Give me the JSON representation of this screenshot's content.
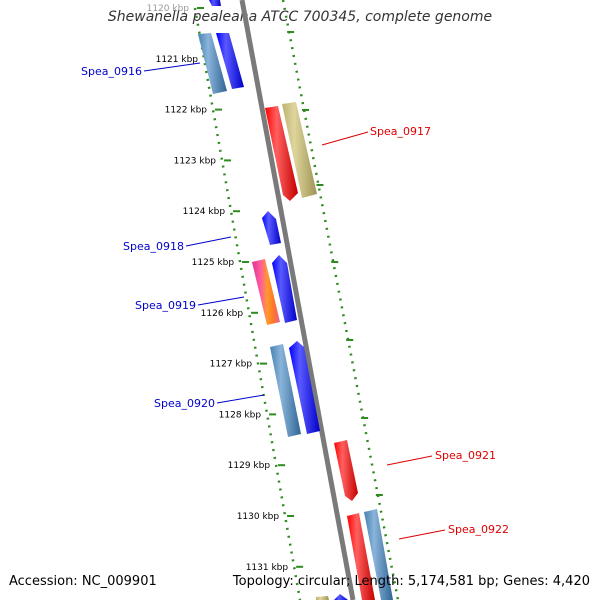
{
  "title": "Shewanella pealeana ATCC 700345, complete genome",
  "footer": {
    "accession": "Accession: NC_009901",
    "stats": "Topology: circular; Length: 5,174,581 bp; Genes: 4,420"
  },
  "ticks": [
    "1120 kbp",
    "1121 kbp",
    "1122 kbp",
    "1123 kbp",
    "1124 kbp",
    "1125 kbp",
    "1126 kbp",
    "1127 kbp",
    "1128 kbp",
    "1129 kbp",
    "1130 kbp",
    "1131 kbp"
  ],
  "gene_labels": [
    {
      "name": "Spea_0916",
      "color": "#0000cc"
    },
    {
      "name": "Spea_0917",
      "color": "#dd0000"
    },
    {
      "name": "Spea_0918",
      "color": "#0000cc"
    },
    {
      "name": "Spea_0919",
      "color": "#0000cc"
    },
    {
      "name": "Spea_0920",
      "color": "#0000cc"
    },
    {
      "name": "Spea_0921",
      "color": "#dd0000"
    },
    {
      "name": "Spea_0922",
      "color": "#dd0000"
    }
  ],
  "colors": {
    "backbone": "#7a7a7a",
    "tick_mark": "#2e8b1e",
    "forward_cds": "#0000ff",
    "forward_other": "#3f7fb8",
    "reverse_cds": "#ee0000",
    "reverse_other": "#b8ac6a",
    "mixed_feature": "#e8418a"
  }
}
